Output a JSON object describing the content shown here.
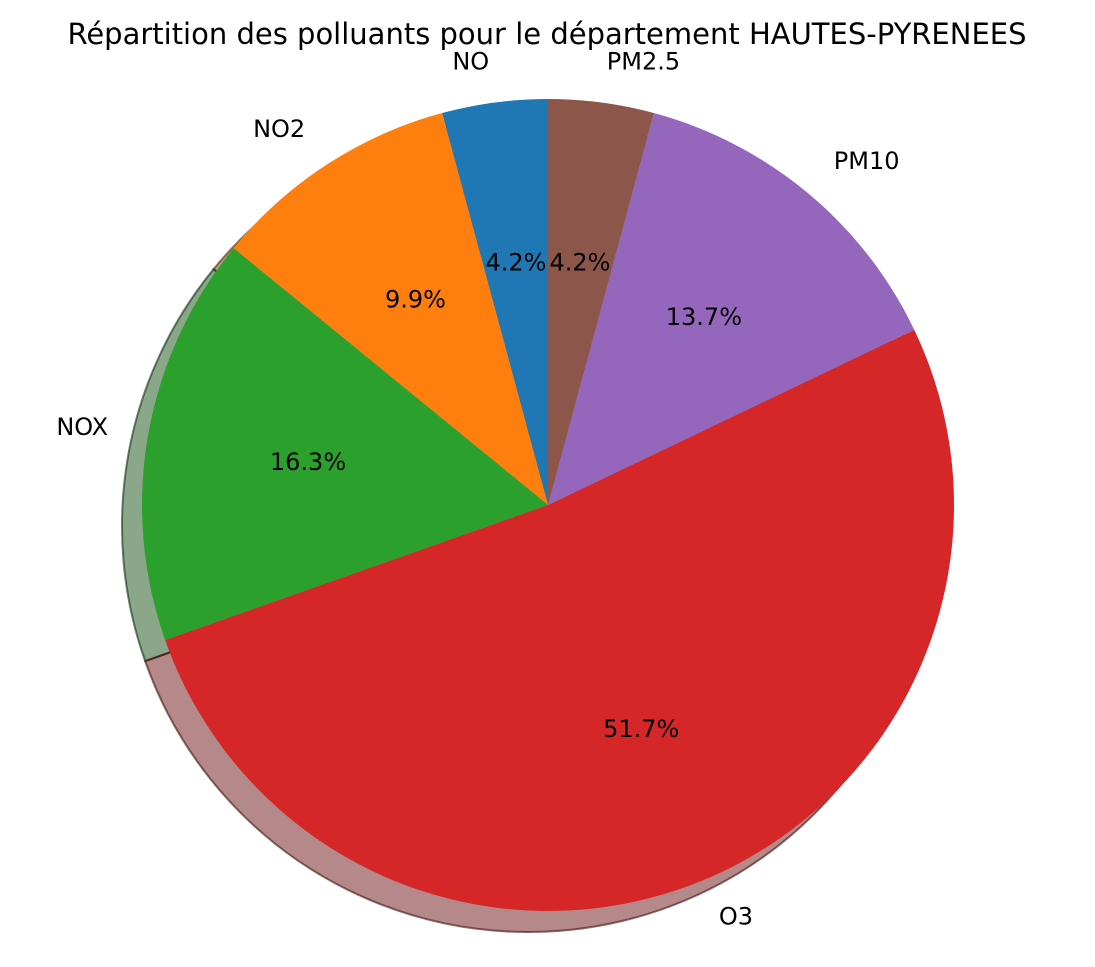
{
  "chart_data": {
    "type": "pie",
    "title": "Répartition des polluants pour le département HAUTES-PYRENEES",
    "categories": [
      "NO",
      "NO2",
      "NOX",
      "O3",
      "PM10",
      "PM2.5"
    ],
    "values": [
      4.2,
      9.9,
      16.3,
      51.7,
      13.7,
      4.2
    ],
    "value_labels": [
      "4.2%",
      "9.9%",
      "16.3%",
      "51.7%",
      "13.7%",
      "4.2%"
    ],
    "colors": [
      "#1f77b4",
      "#ff7f0e",
      "#2ca02c",
      "#d62728",
      "#9467bd",
      "#8c564b"
    ],
    "start_angle_deg": 90,
    "direction": "counterclockwise",
    "shadow": true,
    "legend": "none"
  }
}
